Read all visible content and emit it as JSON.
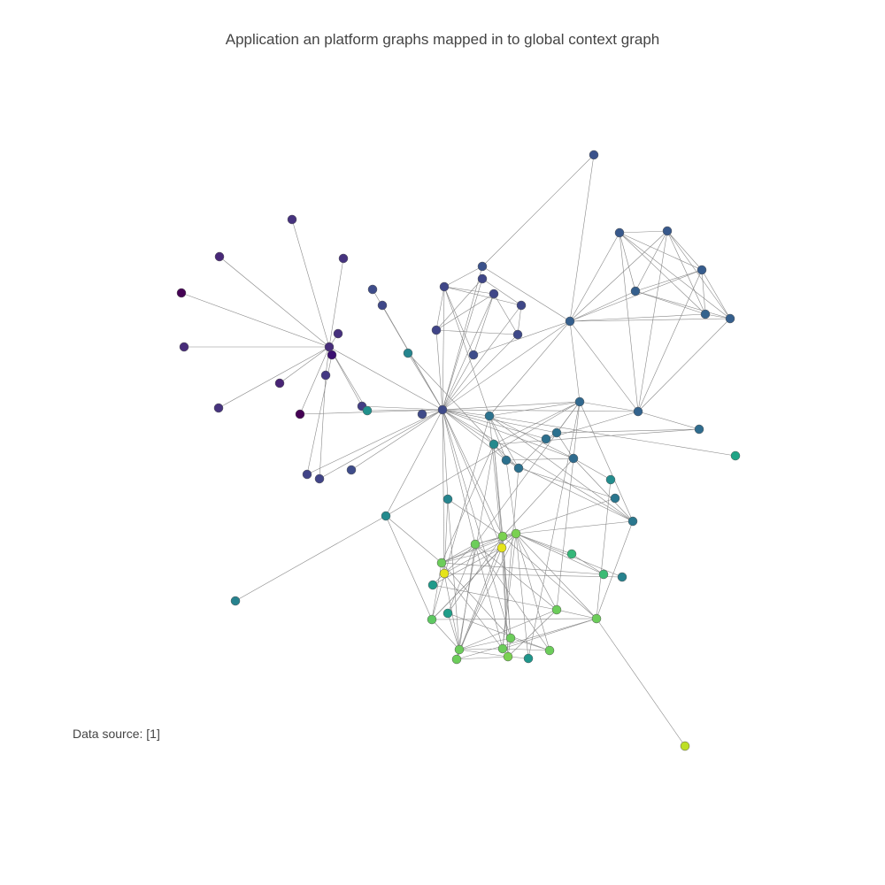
{
  "title": "Application an platform graphs mapped in to global context graph",
  "annotation": "Data source: [1]"
}
